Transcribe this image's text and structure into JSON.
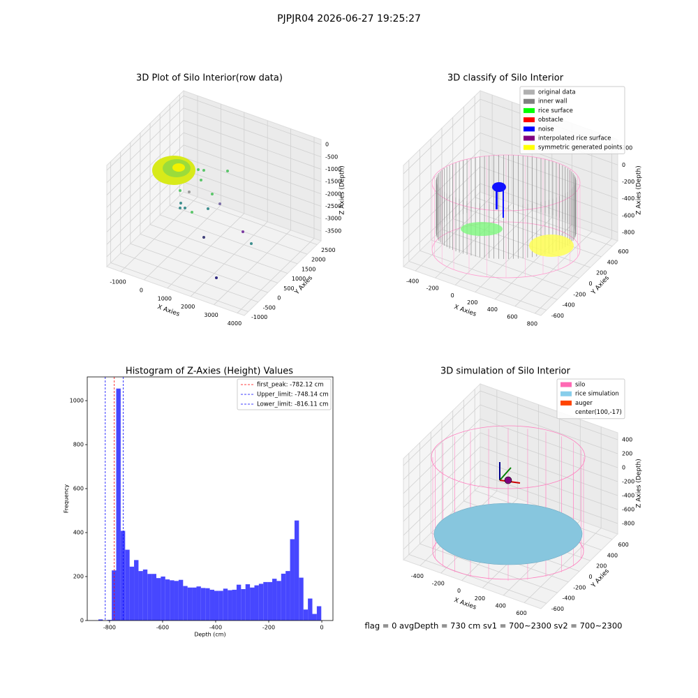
{
  "suptitle": "PJPJR04 2026-06-27 19:25:27",
  "chart_data": [
    {
      "type": "scatter3d",
      "title": "3D Plot of Silo Interior(row data)",
      "xlabel": "X Axies",
      "ylabel": "Y Axies",
      "zlabel": "Z Axies (Depth)",
      "xlim": [
        -1600,
        4300
      ],
      "xticks": [
        -1000,
        0,
        1000,
        2000,
        3000,
        4000
      ],
      "ylim": [
        -1200,
        2700
      ],
      "yticks": [
        -1000,
        -500,
        0,
        500,
        1000,
        1500,
        2000,
        2500
      ],
      "zlim": [
        -3900,
        200
      ],
      "zticks": [
        -3500,
        -3000,
        -2500,
        -2000,
        -1500,
        -1000,
        -500,
        0
      ]
    },
    {
      "type": "scatter3d",
      "title": "3D classify of Silo Interior",
      "xlabel": "X Axies",
      "ylabel": "Y Axies",
      "zlabel": "Z Axies (Depth)",
      "xlim": [
        -520,
        860
      ],
      "xticks": [
        -400,
        -200,
        0,
        200,
        400,
        600,
        800
      ],
      "ylim": [
        -700,
        700
      ],
      "yticks": [
        -600,
        -400,
        -200,
        0,
        200,
        400,
        600
      ],
      "zlim": [
        -900,
        300
      ],
      "zticks": [
        -800,
        -600,
        -400,
        -200,
        0,
        200
      ],
      "legend": [
        {
          "name": "original data",
          "color": "#b0b0b0"
        },
        {
          "name": "inner wall",
          "color": "#808080"
        },
        {
          "name": "rice surface",
          "color": "#00ff00"
        },
        {
          "name": "obstacle",
          "color": "#ff0000"
        },
        {
          "name": "noise",
          "color": "#0000ff"
        },
        {
          "name": "interpolated rice surface",
          "color": "#800080"
        },
        {
          "name": "symmetric generated points",
          "color": "#ffff00"
        }
      ]
    },
    {
      "type": "histogram",
      "title": "Histogram of Z-Axies (Height) Values",
      "xlabel": "Depth (cm)",
      "ylabel": "Frequency",
      "color": "#4747ff",
      "bins": [
        -842,
        -825.2,
        -808.4,
        -791.6,
        -774.8,
        -758,
        -741.2,
        -724.4,
        -707.6,
        -690.8,
        -674,
        -657.2,
        -640.4,
        -623.6,
        -606.8,
        -590,
        -573.2,
        -556.4,
        -539.6,
        -522.8,
        -506,
        -489.2,
        -472.4,
        -455.6,
        -438.8,
        -422,
        -405.2,
        -388.4,
        -371.6,
        -354.8,
        -338,
        -321.2,
        -304.4,
        -287.6,
        -270.8,
        -254,
        -237.2,
        -220.4,
        -203.6,
        -186.8,
        -170,
        -153.2,
        -136.4,
        -119.6,
        -102.8,
        -86,
        -69.2,
        -52.4,
        -35.6,
        -18.8,
        -2
      ],
      "values": [
        5,
        0,
        3,
        228,
        1055,
        408,
        322,
        245,
        275,
        225,
        232,
        212,
        212,
        193,
        200,
        187,
        183,
        180,
        185,
        157,
        150,
        150,
        155,
        148,
        147,
        140,
        135,
        135,
        145,
        138,
        140,
        163,
        143,
        165,
        150,
        160,
        167,
        175,
        175,
        190,
        180,
        213,
        225,
        370,
        455,
        195,
        50,
        100,
        30,
        65
      ],
      "xlim": [
        -884,
        42
      ],
      "xticks": [
        -800,
        -600,
        -400,
        -200,
        0
      ],
      "ylim": [
        0,
        1108
      ],
      "yticks": [
        0,
        200,
        400,
        600,
        800,
        1000
      ],
      "legend_loc": "upper right",
      "vlines": [
        {
          "label": "first_peak: -782.12 cm",
          "value": -782.12,
          "color": "#ff0000"
        },
        {
          "label": "Upper_limit: -748.14 cm",
          "value": -748.14,
          "color": "#0000ff"
        },
        {
          "label": "Lower_limit: -816.11 cm",
          "value": -816.11,
          "color": "#0000ff"
        }
      ]
    },
    {
      "type": "scatter3d",
      "title": "3D simulation of Silo Interior",
      "xlabel": "X Axies",
      "ylabel": "Y Axies",
      "zlabel": "Z Axies (Depth)",
      "xlim": [
        -560,
        760
      ],
      "xticks": [
        -400,
        -200,
        0,
        200,
        400,
        600
      ],
      "ylim": [
        -700,
        700
      ],
      "yticks": [
        -600,
        -400,
        -200,
        0,
        200,
        400,
        600
      ],
      "zlim": [
        -950,
        500
      ],
      "zticks": [
        -800,
        -600,
        -400,
        -200,
        0,
        200,
        400
      ],
      "legend": [
        {
          "name": "silo",
          "color": "#ff69b4"
        },
        {
          "name": "rice simulation",
          "color": "#87ceeb"
        },
        {
          "name": "auger",
          "color": "#ff4500"
        },
        {
          "name": "center(100,-17)"
        }
      ],
      "annotation": "flag = 0     avgDepth = 730 cm  sv1 = 700~2300  sv2 = 700~2300"
    }
  ]
}
